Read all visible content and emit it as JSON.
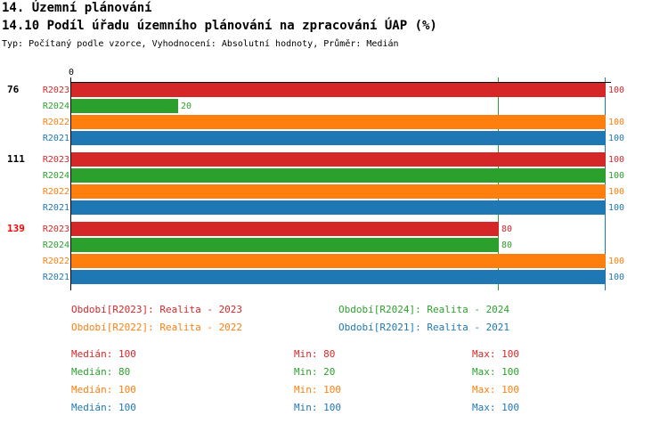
{
  "header": {
    "section": "14. Územní plánování",
    "title": "14.10 Podíl úřadu územního plánování na zpracování ÚAP (%)",
    "subtitle": "Typ: Počítaný podle vzorce, Vyhodnocení: Absolutní hodnoty, Průměr: Medián"
  },
  "colors": {
    "R2023": "#d62728",
    "R2024": "#2ca02c",
    "R2022": "#ff7f0e",
    "R2021": "#1f77b4",
    "highlight": "#ff0000"
  },
  "chart_data": {
    "type": "bar",
    "orientation": "horizontal",
    "xlim": [
      0,
      100
    ],
    "x_tick_labels": [
      "0"
    ],
    "reference_lines": [
      {
        "value": 80,
        "color": "#2ca02c"
      },
      {
        "value": 100,
        "color": "#1f77b4"
      }
    ],
    "groups": [
      {
        "label": "76",
        "highlight": false,
        "bars": [
          {
            "series": "R2023",
            "value": 100
          },
          {
            "series": "R2024",
            "value": 20
          },
          {
            "series": "R2022",
            "value": 100
          },
          {
            "series": "R2021",
            "value": 100
          }
        ]
      },
      {
        "label": "111",
        "highlight": false,
        "bars": [
          {
            "series": "R2023",
            "value": 100
          },
          {
            "series": "R2024",
            "value": 100
          },
          {
            "series": "R2022",
            "value": 100
          },
          {
            "series": "R2021",
            "value": 100
          }
        ]
      },
      {
        "label": "139",
        "highlight": true,
        "bars": [
          {
            "series": "R2023",
            "value": 80
          },
          {
            "series": "R2024",
            "value": 80
          },
          {
            "series": "R2022",
            "value": 100
          },
          {
            "series": "R2021",
            "value": 100
          }
        ]
      }
    ],
    "legend": [
      {
        "series": "R2023",
        "text": "Období[R2023]: Realita - 2023"
      },
      {
        "series": "R2024",
        "text": "Období[R2024]: Realita - 2024"
      },
      {
        "series": "R2022",
        "text": "Období[R2022]: Realita - 2022"
      },
      {
        "series": "R2021",
        "text": "Období[R2021]: Realita - 2021"
      }
    ],
    "stats": [
      {
        "series": "R2023",
        "median": "Medián: 100",
        "min": "Min: 80",
        "max": "Max: 100"
      },
      {
        "series": "R2024",
        "median": "Medián: 80",
        "min": "Min: 20",
        "max": "Max: 100"
      },
      {
        "series": "R2022",
        "median": "Medián: 100",
        "min": "Min: 100",
        "max": "Max: 100"
      },
      {
        "series": "R2021",
        "median": "Medián: 100",
        "min": "Min: 100",
        "max": "Max: 100"
      }
    ]
  }
}
